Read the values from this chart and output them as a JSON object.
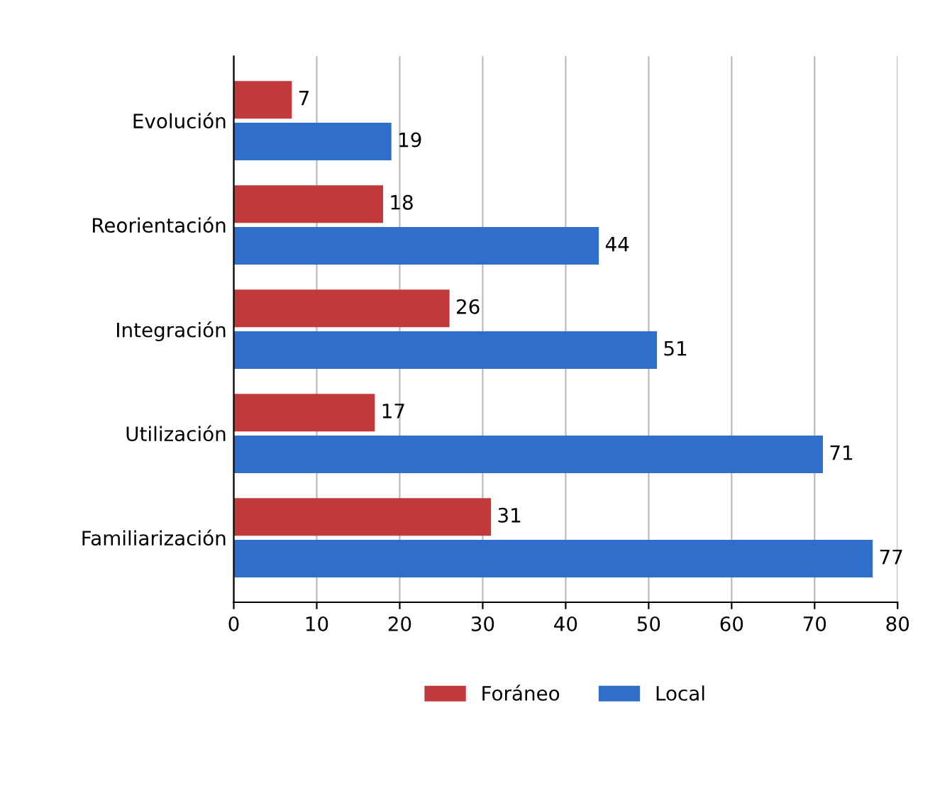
{
  "chart_data": {
    "type": "bar",
    "orientation": "horizontal",
    "categories": [
      "Evolución",
      "Reorientación",
      "Integración",
      "Utilización",
      "Familiarización"
    ],
    "series": [
      {
        "name": "Foráneo",
        "color": "#c0393b",
        "values": [
          7,
          18,
          26,
          17,
          31
        ]
      },
      {
        "name": "Local",
        "color": "#2f6fc9",
        "values": [
          19,
          44,
          51,
          71,
          77
        ]
      }
    ],
    "xlim": [
      0,
      80
    ],
    "xticks": [
      0,
      10,
      20,
      30,
      40,
      50,
      60,
      70,
      80
    ],
    "grid": "x",
    "legend": "bottom",
    "data_labels": true
  }
}
